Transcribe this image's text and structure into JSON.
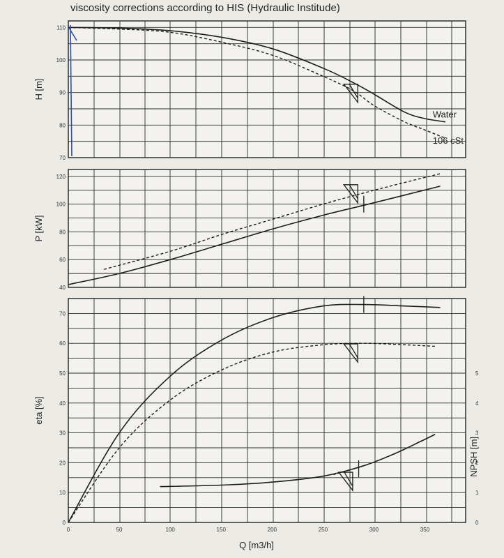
{
  "title": "viscosity corrections according to HIS (Hydraulic Institude)",
  "colors": {
    "background": "#ecebe6",
    "plot": "#f3f2ee",
    "ink": "#1e1e1e",
    "pen_mark": "#2b4fa8"
  },
  "chart_data": [
    {
      "name": "head",
      "type": "line",
      "ylabel": "H [m]",
      "xlabel": "",
      "xlim": [
        0,
        390
      ],
      "ylim": [
        70,
        112
      ],
      "yticks": [
        70,
        80,
        90,
        100,
        110
      ],
      "ytick_labels": [
        "70",
        "80",
        "90",
        "100",
        "110"
      ],
      "grid": true,
      "series": [
        {
          "name": "Water",
          "style": "solid",
          "x": [
            0,
            50,
            100,
            150,
            200,
            250,
            280,
            300,
            330,
            350,
            370
          ],
          "y": [
            110,
            109.8,
            109,
            107,
            103.5,
            97.5,
            93,
            89.5,
            84,
            82,
            81
          ]
        },
        {
          "name": "106 cSt",
          "style": "dashed",
          "x": [
            0,
            50,
            100,
            150,
            200,
            250,
            280,
            300,
            330,
            350,
            370
          ],
          "y": [
            110,
            109.5,
            108.5,
            105.5,
            101.5,
            95,
            90.5,
            86,
            81,
            78.5,
            76
          ]
        }
      ],
      "markers": [
        {
          "kind": "triangle",
          "x": 280,
          "y": 90
        }
      ]
    },
    {
      "name": "power",
      "type": "line",
      "ylabel": "P [kW]",
      "xlabel": "",
      "xlim": [
        0,
        390
      ],
      "ylim": [
        40,
        125
      ],
      "yticks": [
        40,
        60,
        80,
        100,
        120
      ],
      "ytick_labels": [
        "40",
        "60",
        "80",
        "100",
        "120"
      ],
      "grid": true,
      "series": [
        {
          "name": "",
          "style": "solid",
          "x": [
            0,
            50,
            100,
            150,
            200,
            250,
            300,
            365
          ],
          "y": [
            42,
            50,
            60,
            71,
            82,
            92,
            101,
            113
          ]
        },
        {
          "name": "",
          "style": "dashed",
          "x": [
            35,
            100,
            150,
            200,
            250,
            300,
            365
          ],
          "y": [
            53,
            66,
            78,
            89,
            100,
            110,
            122
          ]
        }
      ],
      "markers": [
        {
          "kind": "triangle",
          "x": 280,
          "y": 108
        },
        {
          "kind": "tick",
          "x": 290,
          "y": 100
        }
      ]
    },
    {
      "name": "efficiency",
      "type": "line",
      "ylabel": "eta [%]",
      "xlabel": "Q [m3/h]",
      "xlim": [
        0,
        390
      ],
      "xticks": [
        0,
        50,
        100,
        150,
        200,
        250,
        300,
        350
      ],
      "xtick_labels": [
        "0",
        "50",
        "100",
        "150",
        "200",
        "250",
        "300",
        "350"
      ],
      "ylim": [
        0,
        75
      ],
      "yticks": [
        0,
        10,
        20,
        30,
        40,
        50,
        60,
        70
      ],
      "ytick_labels": [
        "0",
        "10",
        "20",
        "30",
        "40",
        "50",
        "60",
        "70"
      ],
      "y2label": "NPSH [m]",
      "y2lim": [
        0,
        7.5
      ],
      "y2ticks": [
        0,
        1,
        2,
        3,
        4,
        5
      ],
      "y2tick_labels": [
        "0",
        "1",
        "2",
        "3",
        "4",
        "5"
      ],
      "grid": true,
      "series": [
        {
          "name": "",
          "style": "solid",
          "axis": "left",
          "x": [
            0,
            50,
            100,
            150,
            200,
            250,
            290,
            330,
            365
          ],
          "y": [
            0,
            30,
            49,
            61,
            68.5,
            72.5,
            73,
            72.5,
            72
          ]
        },
        {
          "name": "",
          "style": "dashed",
          "axis": "left",
          "x": [
            0,
            50,
            100,
            150,
            200,
            250,
            290,
            330,
            360
          ],
          "y": [
            0,
            25,
            41,
            51,
            57,
            59.5,
            60,
            59.5,
            59
          ]
        },
        {
          "name": "",
          "style": "solid",
          "axis": "right",
          "x": [
            90,
            150,
            200,
            250,
            290,
            320,
            345,
            360
          ],
          "y": [
            1.2,
            1.25,
            1.35,
            1.55,
            1.9,
            2.3,
            2.7,
            2.95
          ]
        },
        {
          "name": "",
          "style": "dashed",
          "axis": "right",
          "x": [
            260,
            290,
            320,
            345,
            360
          ],
          "y": [
            1.6,
            1.9,
            2.3,
            2.7,
            2.95
          ]
        }
      ],
      "markers": [
        {
          "kind": "triangle",
          "x": 280,
          "y": 57
        },
        {
          "kind": "tick",
          "x": 290,
          "y": 73
        },
        {
          "kind": "triangle",
          "x": 275,
          "y": 14
        },
        {
          "kind": "tick",
          "x": 285,
          "y": 18
        }
      ]
    }
  ]
}
